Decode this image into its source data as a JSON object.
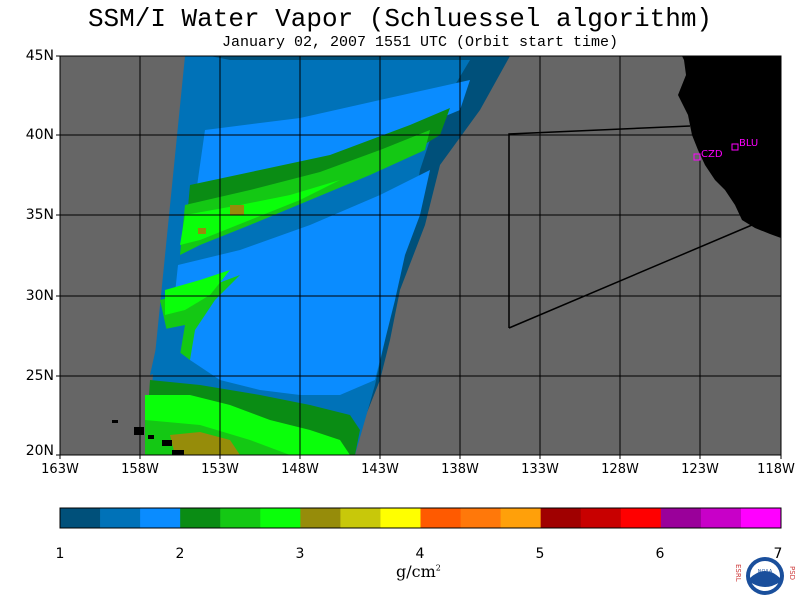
{
  "title": "SSM/I Water Vapor (Schluessel algorithm)",
  "subtitle": "January 02, 2007  1551 UTC  (Orbit start time)",
  "map": {
    "lat_labels": [
      "45N",
      "40N",
      "35N",
      "30N",
      "25N",
      "20N"
    ],
    "lon_labels": [
      "163W",
      "158W",
      "153W",
      "148W",
      "143W",
      "138W",
      "133W",
      "128W",
      "123W",
      "118W"
    ],
    "stations": [
      "CZD",
      "BLU"
    ],
    "colors": {
      "ocean_missing": "#666666",
      "land": "#000000",
      "station": "#ff00ff",
      "grid": "#000000"
    }
  },
  "colorbar": {
    "tick_labels": [
      "1",
      "2",
      "3",
      "4",
      "5",
      "6",
      "7"
    ],
    "units_text": "g/cm",
    "units_exp": "2",
    "colors": [
      "#00507a",
      "#0072b8",
      "#0a8cff",
      "#0a8c14",
      "#14c814",
      "#0aff0a",
      "#968c0a",
      "#c8c80a",
      "#ffff00",
      "#ff5a00",
      "#ff780a",
      "#ffa00a",
      "#a00000",
      "#c80000",
      "#ff0000",
      "#9a009a",
      "#c800c8",
      "#ff00ff"
    ]
  },
  "logo": {
    "left_letters": "ESRL",
    "right_letters": "PSD",
    "center_text": "NOAA"
  }
}
